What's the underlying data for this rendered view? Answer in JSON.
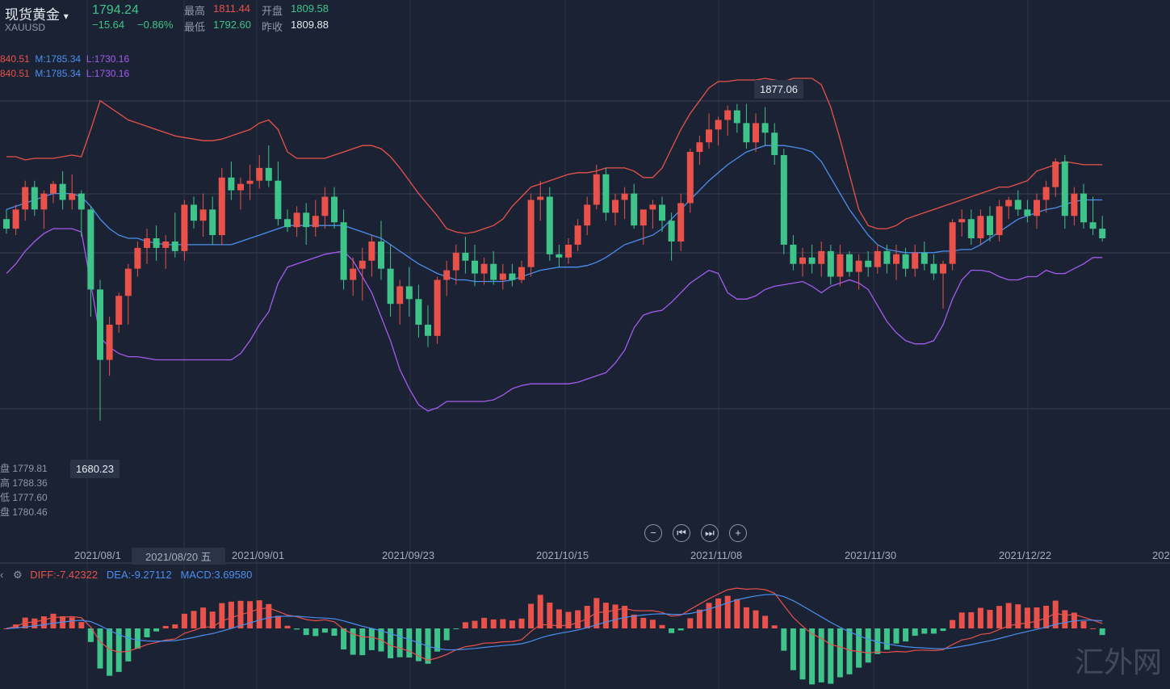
{
  "header": {
    "name": "现货黄金",
    "symbol": "XAUUSD",
    "price": "1794.24",
    "change": "−15.64",
    "change_pct": "−0.86%",
    "high_label": "最高",
    "high": "1811.44",
    "open_label": "开盘",
    "open": "1809.58",
    "low_label": "最低",
    "low": "1792.60",
    "prev_label": "昨收",
    "prev": "1809.88"
  },
  "boll_line1": {
    "u": "840.51",
    "m": "M:1785.34",
    "l": "L:1730.16"
  },
  "boll_line2": {
    "u": "840.51",
    "m": "M:1785.34",
    "l": "L:1730.16"
  },
  "ohlc_panel": [
    "盘 1779.81",
    "高 1788.36",
    "低 1777.60",
    "盘 1780.46"
  ],
  "max_tip": "1877.06",
  "min_tip": "1680.23",
  "cursor_date": "2021/08/20 五",
  "macd_labels": {
    "diff": "DIFF:-7.42322",
    "dea": "DEA:-9.27112",
    "macd": "MACD:3.69580"
  },
  "watermark": "汇外网",
  "colors": {
    "up": "#e8524a",
    "down": "#3ec48a",
    "mid": "#4a8ff0",
    "upper": "#e8524a",
    "lower": "#a35cf0",
    "bg": "#1b2233"
  },
  "chart_data": {
    "type": "candlestick",
    "x_ticks": [
      "2021/08/1",
      "2021/09/01",
      "2021/09/23",
      "2021/10/15",
      "2021/11/08",
      "2021/11/30",
      "2021/12/22",
      "202"
    ],
    "ylim": [
      1640,
      1895
    ],
    "candles": [
      [
        1806,
        1812,
        1797,
        1800
      ],
      [
        1800,
        1815,
        1796,
        1812
      ],
      [
        1812,
        1830,
        1805,
        1826
      ],
      [
        1826,
        1830,
        1808,
        1812
      ],
      [
        1812,
        1824,
        1800,
        1822
      ],
      [
        1822,
        1830,
        1816,
        1828
      ],
      [
        1828,
        1836,
        1812,
        1818
      ],
      [
        1818,
        1834,
        1812,
        1822
      ],
      [
        1822,
        1824,
        1795,
        1812
      ],
      [
        1812,
        1814,
        1745,
        1762
      ],
      [
        1762,
        1768,
        1680,
        1718
      ],
      [
        1718,
        1745,
        1708,
        1740
      ],
      [
        1740,
        1760,
        1735,
        1758
      ],
      [
        1758,
        1778,
        1740,
        1775
      ],
      [
        1775,
        1792,
        1770,
        1788
      ],
      [
        1788,
        1800,
        1778,
        1794
      ],
      [
        1794,
        1802,
        1780,
        1788
      ],
      [
        1788,
        1796,
        1775,
        1792
      ],
      [
        1792,
        1810,
        1782,
        1786
      ],
      [
        1786,
        1818,
        1780,
        1815
      ],
      [
        1815,
        1820,
        1800,
        1805
      ],
      [
        1805,
        1822,
        1795,
        1812
      ],
      [
        1812,
        1820,
        1790,
        1796
      ],
      [
        1796,
        1838,
        1790,
        1832
      ],
      [
        1832,
        1842,
        1818,
        1824
      ],
      [
        1824,
        1832,
        1812,
        1828
      ],
      [
        1828,
        1840,
        1818,
        1830
      ],
      [
        1830,
        1846,
        1825,
        1838
      ],
      [
        1838,
        1852,
        1826,
        1830
      ],
      [
        1830,
        1842,
        1802,
        1806
      ],
      [
        1806,
        1812,
        1798,
        1801
      ],
      [
        1801,
        1814,
        1795,
        1810
      ],
      [
        1810,
        1816,
        1790,
        1801
      ],
      [
        1801,
        1818,
        1795,
        1808
      ],
      [
        1808,
        1826,
        1800,
        1820
      ],
      [
        1820,
        1826,
        1800,
        1804
      ],
      [
        1804,
        1812,
        1762,
        1768
      ],
      [
        1768,
        1782,
        1758,
        1775
      ],
      [
        1775,
        1788,
        1755,
        1780
      ],
      [
        1780,
        1796,
        1770,
        1792
      ],
      [
        1792,
        1805,
        1768,
        1775
      ],
      [
        1775,
        1790,
        1745,
        1753
      ],
      [
        1753,
        1768,
        1740,
        1764
      ],
      [
        1764,
        1776,
        1745,
        1756
      ],
      [
        1756,
        1765,
        1732,
        1740
      ],
      [
        1740,
        1752,
        1726,
        1733
      ],
      [
        1733,
        1770,
        1728,
        1768
      ],
      [
        1768,
        1780,
        1758,
        1774
      ],
      [
        1774,
        1790,
        1765,
        1785
      ],
      [
        1785,
        1795,
        1772,
        1780
      ],
      [
        1780,
        1790,
        1764,
        1772
      ],
      [
        1772,
        1782,
        1765,
        1778
      ],
      [
        1778,
        1786,
        1765,
        1768
      ],
      [
        1768,
        1778,
        1762,
        1772
      ],
      [
        1772,
        1778,
        1764,
        1768
      ],
      [
        1768,
        1780,
        1766,
        1776
      ],
      [
        1776,
        1822,
        1770,
        1818
      ],
      [
        1818,
        1830,
        1805,
        1820
      ],
      [
        1820,
        1826,
        1780,
        1784
      ],
      [
        1784,
        1790,
        1776,
        1782
      ],
      [
        1782,
        1794,
        1778,
        1790
      ],
      [
        1790,
        1806,
        1786,
        1802
      ],
      [
        1802,
        1820,
        1796,
        1815
      ],
      [
        1815,
        1840,
        1812,
        1834
      ],
      [
        1834,
        1838,
        1805,
        1810
      ],
      [
        1810,
        1822,
        1802,
        1818
      ],
      [
        1818,
        1826,
        1806,
        1822
      ],
      [
        1822,
        1828,
        1800,
        1802
      ],
      [
        1802,
        1810,
        1790,
        1812
      ],
      [
        1812,
        1818,
        1800,
        1815
      ],
      [
        1815,
        1820,
        1798,
        1805
      ],
      [
        1805,
        1810,
        1780,
        1792
      ],
      [
        1792,
        1822,
        1786,
        1816
      ],
      [
        1816,
        1850,
        1810,
        1848
      ],
      [
        1848,
        1858,
        1840,
        1854
      ],
      [
        1854,
        1872,
        1850,
        1862
      ],
      [
        1862,
        1870,
        1852,
        1868
      ],
      [
        1868,
        1877,
        1858,
        1874
      ],
      [
        1874,
        1878,
        1860,
        1866
      ],
      [
        1866,
        1878,
        1850,
        1854
      ],
      [
        1854,
        1872,
        1848,
        1866
      ],
      [
        1866,
        1876,
        1852,
        1860
      ],
      [
        1860,
        1866,
        1840,
        1846
      ],
      [
        1846,
        1850,
        1784,
        1790
      ],
      [
        1790,
        1796,
        1774,
        1778
      ],
      [
        1778,
        1788,
        1770,
        1782
      ],
      [
        1782,
        1790,
        1772,
        1778
      ],
      [
        1778,
        1792,
        1770,
        1786
      ],
      [
        1786,
        1790,
        1765,
        1770
      ],
      [
        1770,
        1790,
        1764,
        1784
      ],
      [
        1784,
        1786,
        1770,
        1773
      ],
      [
        1773,
        1784,
        1762,
        1780
      ],
      [
        1780,
        1786,
        1770,
        1776
      ],
      [
        1776,
        1790,
        1772,
        1786
      ],
      [
        1786,
        1790,
        1772,
        1778
      ],
      [
        1778,
        1790,
        1768,
        1784
      ],
      [
        1784,
        1788,
        1770,
        1775
      ],
      [
        1775,
        1790,
        1770,
        1785
      ],
      [
        1785,
        1792,
        1774,
        1778
      ],
      [
        1778,
        1784,
        1768,
        1772
      ],
      [
        1772,
        1780,
        1750,
        1778
      ],
      [
        1778,
        1806,
        1774,
        1804
      ],
      [
        1804,
        1812,
        1795,
        1806
      ],
      [
        1806,
        1812,
        1790,
        1794
      ],
      [
        1794,
        1812,
        1790,
        1808
      ],
      [
        1808,
        1814,
        1792,
        1796
      ],
      [
        1796,
        1818,
        1792,
        1814
      ],
      [
        1814,
        1820,
        1806,
        1818
      ],
      [
        1818,
        1824,
        1808,
        1812
      ],
      [
        1812,
        1818,
        1804,
        1808
      ],
      [
        1808,
        1822,
        1800,
        1818
      ],
      [
        1818,
        1830,
        1810,
        1826
      ],
      [
        1826,
        1844,
        1820,
        1842
      ],
      [
        1842,
        1846,
        1800,
        1808
      ],
      [
        1808,
        1826,
        1802,
        1822
      ],
      [
        1822,
        1828,
        1800,
        1804
      ],
      [
        1804,
        1820,
        1796,
        1800
      ],
      [
        1800,
        1808,
        1792,
        1794
      ]
    ],
    "upper_band": [
      1845,
      1845,
      1843,
      1844,
      1844,
      1844,
      1845,
      1846,
      1845,
      1862,
      1880,
      1876,
      1872,
      1868,
      1866,
      1864,
      1862,
      1860,
      1858,
      1857,
      1856,
      1855,
      1855,
      1856,
      1858,
      1860,
      1862,
      1866,
      1868,
      1862,
      1848,
      1844,
      1844,
      1844,
      1844,
      1846,
      1848,
      1850,
      1852,
      1852,
      1850,
      1845,
      1838,
      1830,
      1822,
      1815,
      1808,
      1800,
      1798,
      1797,
      1798,
      1800,
      1802,
      1806,
      1814,
      1820,
      1826,
      1828,
      1830,
      1832,
      1834,
      1835,
      1835,
      1836,
      1838,
      1838,
      1838,
      1836,
      1832,
      1832,
      1838,
      1850,
      1862,
      1872,
      1880,
      1888,
      1892,
      1892,
      1893,
      1893,
      1893,
      1894,
      1893,
      1892,
      1894,
      1894,
      1894,
      1890,
      1876,
      1856,
      1834,
      1812,
      1802,
      1800,
      1800,
      1802,
      1806,
      1808,
      1810,
      1812,
      1814,
      1816,
      1818,
      1820,
      1822,
      1824,
      1826,
      1826,
      1828,
      1830,
      1836,
      1838,
      1840,
      1842,
      1841,
      1840,
      1840,
      1840
    ],
    "mid_band": [
      1812,
      1814,
      1816,
      1818,
      1820,
      1822,
      1822,
      1822,
      1820,
      1814,
      1806,
      1800,
      1796,
      1794,
      1794,
      1792,
      1791,
      1790,
      1790,
      1790,
      1790,
      1790,
      1790,
      1790,
      1790,
      1792,
      1794,
      1796,
      1798,
      1800,
      1802,
      1802,
      1802,
      1802,
      1802,
      1802,
      1802,
      1800,
      1798,
      1796,
      1794,
      1790,
      1786,
      1782,
      1778,
      1775,
      1772,
      1770,
      1768,
      1768,
      1767,
      1767,
      1767,
      1767,
      1768,
      1770,
      1772,
      1774,
      1775,
      1776,
      1776,
      1776,
      1777,
      1779,
      1782,
      1786,
      1790,
      1792,
      1794,
      1796,
      1800,
      1806,
      1812,
      1818,
      1824,
      1830,
      1835,
      1840,
      1844,
      1848,
      1850,
      1852,
      1852,
      1852,
      1851,
      1850,
      1848,
      1842,
      1832,
      1822,
      1812,
      1804,
      1796,
      1790,
      1787,
      1786,
      1785,
      1785,
      1785,
      1785,
      1786,
      1786,
      1787,
      1787,
      1790,
      1794,
      1798,
      1802,
      1806,
      1808,
      1810,
      1812,
      1813,
      1815,
      1817,
      1818,
      1818,
      1818
    ],
    "lower_band": [
      1772,
      1778,
      1786,
      1792,
      1797,
      1800,
      1800,
      1800,
      1798,
      1766,
      1732,
      1726,
      1722,
      1720,
      1720,
      1719,
      1718,
      1718,
      1718,
      1718,
      1718,
      1718,
      1718,
      1718,
      1718,
      1722,
      1730,
      1740,
      1748,
      1766,
      1776,
      1778,
      1780,
      1782,
      1784,
      1785,
      1786,
      1780,
      1770,
      1760,
      1745,
      1730,
      1712,
      1700,
      1690,
      1686,
      1688,
      1692,
      1692,
      1692,
      1692,
      1692,
      1693,
      1696,
      1700,
      1702,
      1703,
      1703,
      1703,
      1703,
      1703,
      1704,
      1706,
      1708,
      1710,
      1716,
      1724,
      1738,
      1746,
      1748,
      1749,
      1754,
      1760,
      1766,
      1770,
      1774,
      1772,
      1760,
      1756,
      1756,
      1758,
      1762,
      1764,
      1765,
      1766,
      1767,
      1764,
      1760,
      1764,
      1766,
      1768,
      1766,
      1762,
      1752,
      1742,
      1735,
      1730,
      1728,
      1728,
      1730,
      1740,
      1756,
      1768,
      1774,
      1774,
      1773,
      1770,
      1768,
      1768,
      1770,
      1770,
      1774,
      1772,
      1772,
      1775,
      1778,
      1782,
      1782
    ]
  }
}
